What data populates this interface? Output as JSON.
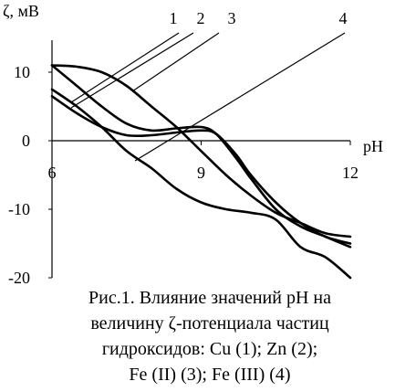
{
  "chart_data": {
    "type": "line",
    "ylabel": "ζ, мВ",
    "xlabel": "pH",
    "xlim": [
      6,
      12
    ],
    "ylim": [
      -20,
      14
    ],
    "xticks": [
      6,
      9,
      12
    ],
    "yticks": [
      10,
      0,
      -10,
      -20
    ],
    "series": [
      {
        "name": "1",
        "points": [
          [
            6.0,
            11.0
          ],
          [
            6.5,
            10.8
          ],
          [
            7.0,
            10.0
          ],
          [
            7.5,
            8.0
          ],
          [
            8.0,
            5.0
          ],
          [
            8.5,
            2.0
          ],
          [
            9.0,
            -1.5
          ],
          [
            9.5,
            -5.0
          ],
          [
            10.0,
            -8.0
          ],
          [
            10.5,
            -10.5
          ],
          [
            11.0,
            -12.0
          ],
          [
            11.5,
            -13.5
          ],
          [
            12.0,
            -14.0
          ]
        ]
      },
      {
        "name": "2",
        "points": [
          [
            6.0,
            6.5
          ],
          [
            6.5,
            4.0
          ],
          [
            7.0,
            2.0
          ],
          [
            7.5,
            0.8
          ],
          [
            8.0,
            0.8
          ],
          [
            8.5,
            1.2
          ],
          [
            9.0,
            1.5
          ],
          [
            9.3,
            1.0
          ],
          [
            9.7,
            -2.0
          ],
          [
            10.0,
            -5.0
          ],
          [
            10.5,
            -9.0
          ],
          [
            11.0,
            -12.0
          ],
          [
            11.5,
            -14.0
          ],
          [
            12.0,
            -15.0
          ]
        ]
      },
      {
        "name": "3",
        "points": [
          [
            6.0,
            11.0
          ],
          [
            6.5,
            8.0
          ],
          [
            7.0,
            5.0
          ],
          [
            7.5,
            2.5
          ],
          [
            8.0,
            1.5
          ],
          [
            8.5,
            1.8
          ],
          [
            9.0,
            2.0
          ],
          [
            9.3,
            1.0
          ],
          [
            9.7,
            -2.5
          ],
          [
            10.0,
            -5.5
          ],
          [
            10.5,
            -10.0
          ],
          [
            11.0,
            -12.5
          ],
          [
            11.5,
            -14.0
          ],
          [
            12.0,
            -15.5
          ]
        ]
      },
      {
        "name": "4",
        "points": [
          [
            6.0,
            7.5
          ],
          [
            6.5,
            5.0
          ],
          [
            7.0,
            2.0
          ],
          [
            7.5,
            -1.5
          ],
          [
            8.0,
            -4.0
          ],
          [
            8.5,
            -7.0
          ],
          [
            9.0,
            -9.0
          ],
          [
            9.5,
            -10.0
          ],
          [
            10.0,
            -10.5
          ],
          [
            10.5,
            -11.5
          ],
          [
            11.0,
            -15.5
          ],
          [
            11.5,
            -17.0
          ],
          [
            12.0,
            -20.0
          ]
        ]
      }
    ],
    "leader_labels": [
      "1",
      "2",
      "3",
      "4"
    ]
  },
  "caption": {
    "line1": "Рис.1. Влияние значений рН на",
    "line2": "величину ζ-потенциала частиц",
    "line3": "гидроксидов: Cu (1); Zn (2);",
    "line4": "Fe (II) (3); Fe (III) (4)"
  }
}
